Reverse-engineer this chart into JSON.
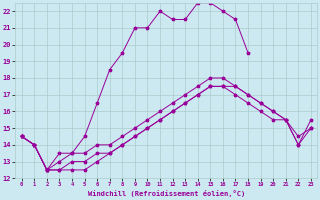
{
  "background_color": "#cce8f0",
  "grid_color": "#aacccc",
  "line_color": "#990099",
  "xlim": [
    -0.5,
    23.5
  ],
  "ylim": [
    12,
    22.5
  ],
  "xticks": [
    0,
    1,
    2,
    3,
    4,
    5,
    6,
    7,
    8,
    9,
    10,
    11,
    12,
    13,
    14,
    15,
    16,
    17,
    18,
    19,
    20,
    21,
    22,
    23
  ],
  "yticks": [
    12,
    13,
    14,
    15,
    16,
    17,
    18,
    19,
    20,
    21,
    22
  ],
  "xlabel": "Windchill (Refroidissement éolien,°C)",
  "line1_x": [
    0,
    1,
    2,
    3,
    4,
    5,
    6,
    7,
    8,
    9,
    10,
    11,
    12,
    13,
    14,
    15,
    16,
    17,
    18
  ],
  "line1_y": [
    14.5,
    14.0,
    12.5,
    13.5,
    13.5,
    14.5,
    16.5,
    18.5,
    19.5,
    21.0,
    21.0,
    22.0,
    21.5,
    21.5,
    22.5,
    22.5,
    22.0,
    21.5,
    19.5
  ],
  "line2_x": [
    0,
    1,
    2,
    3,
    4,
    5,
    6,
    7,
    8,
    9,
    10,
    11,
    12,
    13,
    14,
    15,
    16,
    17,
    18,
    19,
    20,
    21,
    22,
    23
  ],
  "line2_y": [
    14.5,
    14.0,
    12.5,
    13.0,
    13.5,
    13.5,
    14.0,
    14.0,
    14.5,
    15.0,
    15.5,
    16.0,
    16.5,
    17.0,
    17.5,
    18.0,
    18.0,
    17.5,
    17.0,
    16.5,
    16.0,
    15.5,
    14.0,
    15.5
  ],
  "line3_x": [
    0,
    1,
    2,
    3,
    4,
    5,
    6,
    7,
    8,
    9,
    10,
    11,
    12,
    13,
    14,
    15,
    16,
    17,
    18,
    19,
    20,
    21,
    22,
    23
  ],
  "line3_y": [
    14.5,
    14.0,
    12.5,
    12.5,
    13.0,
    13.0,
    13.5,
    13.5,
    14.0,
    14.5,
    15.0,
    15.5,
    16.0,
    16.5,
    17.0,
    17.5,
    17.5,
    17.5,
    17.0,
    16.5,
    16.0,
    15.5,
    14.0,
    15.0
  ],
  "line4_x": [
    0,
    1,
    2,
    3,
    4,
    5,
    6,
    7,
    8,
    9,
    10,
    11,
    12,
    13,
    14,
    15,
    16,
    17,
    18,
    19,
    20,
    21,
    22,
    23
  ],
  "line4_y": [
    14.5,
    14.0,
    12.5,
    12.5,
    12.5,
    12.5,
    13.0,
    13.5,
    14.0,
    14.5,
    15.0,
    15.5,
    16.0,
    16.5,
    17.0,
    17.5,
    17.5,
    17.0,
    16.5,
    16.0,
    15.5,
    15.5,
    14.5,
    15.0
  ]
}
